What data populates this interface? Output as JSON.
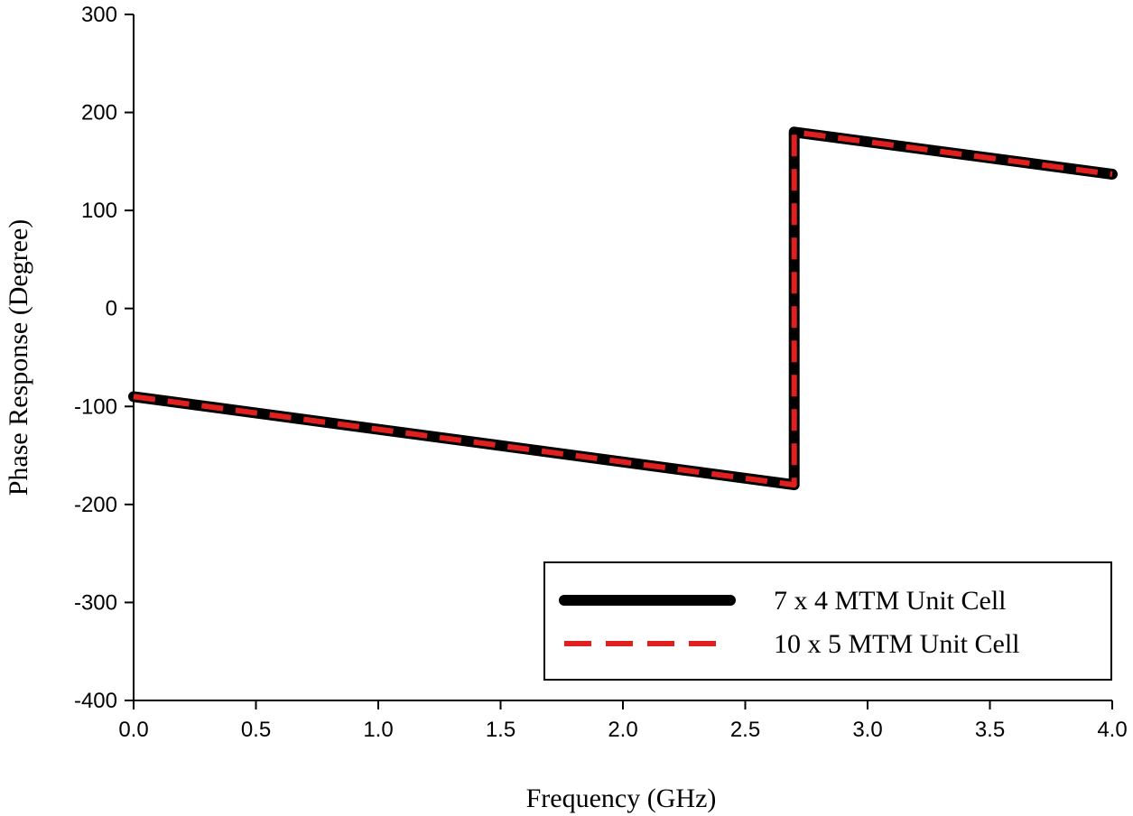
{
  "chart_data": {
    "type": "line",
    "title": "",
    "xlabel": "Frequency (GHz)",
    "ylabel": "Phase Response (Degree)",
    "xlim": [
      0.0,
      4.0
    ],
    "ylim": [
      -400,
      300
    ],
    "x_ticks": [
      "0.0",
      "0.5",
      "1.0",
      "1.5",
      "2.0",
      "2.5",
      "3.0",
      "3.5",
      "4.0"
    ],
    "y_ticks": [
      "-400",
      "-300",
      "-200",
      "-100",
      "0",
      "100",
      "200",
      "300"
    ],
    "grid": false,
    "legend_position": "bottom-right",
    "series": [
      {
        "name": "7 x 4 MTM Unit Cell",
        "color": "#000000",
        "style": "solid",
        "points": [
          [
            0.0,
            -90
          ],
          [
            2.7,
            -180
          ],
          [
            2.7,
            180
          ],
          [
            4.0,
            137
          ]
        ]
      },
      {
        "name": "10 x 5 MTM Unit Cell",
        "color": "#e0201e",
        "style": "dashed",
        "points": [
          [
            0.0,
            -90
          ],
          [
            2.7,
            -180
          ],
          [
            2.7,
            180
          ],
          [
            4.0,
            137
          ]
        ]
      }
    ]
  }
}
